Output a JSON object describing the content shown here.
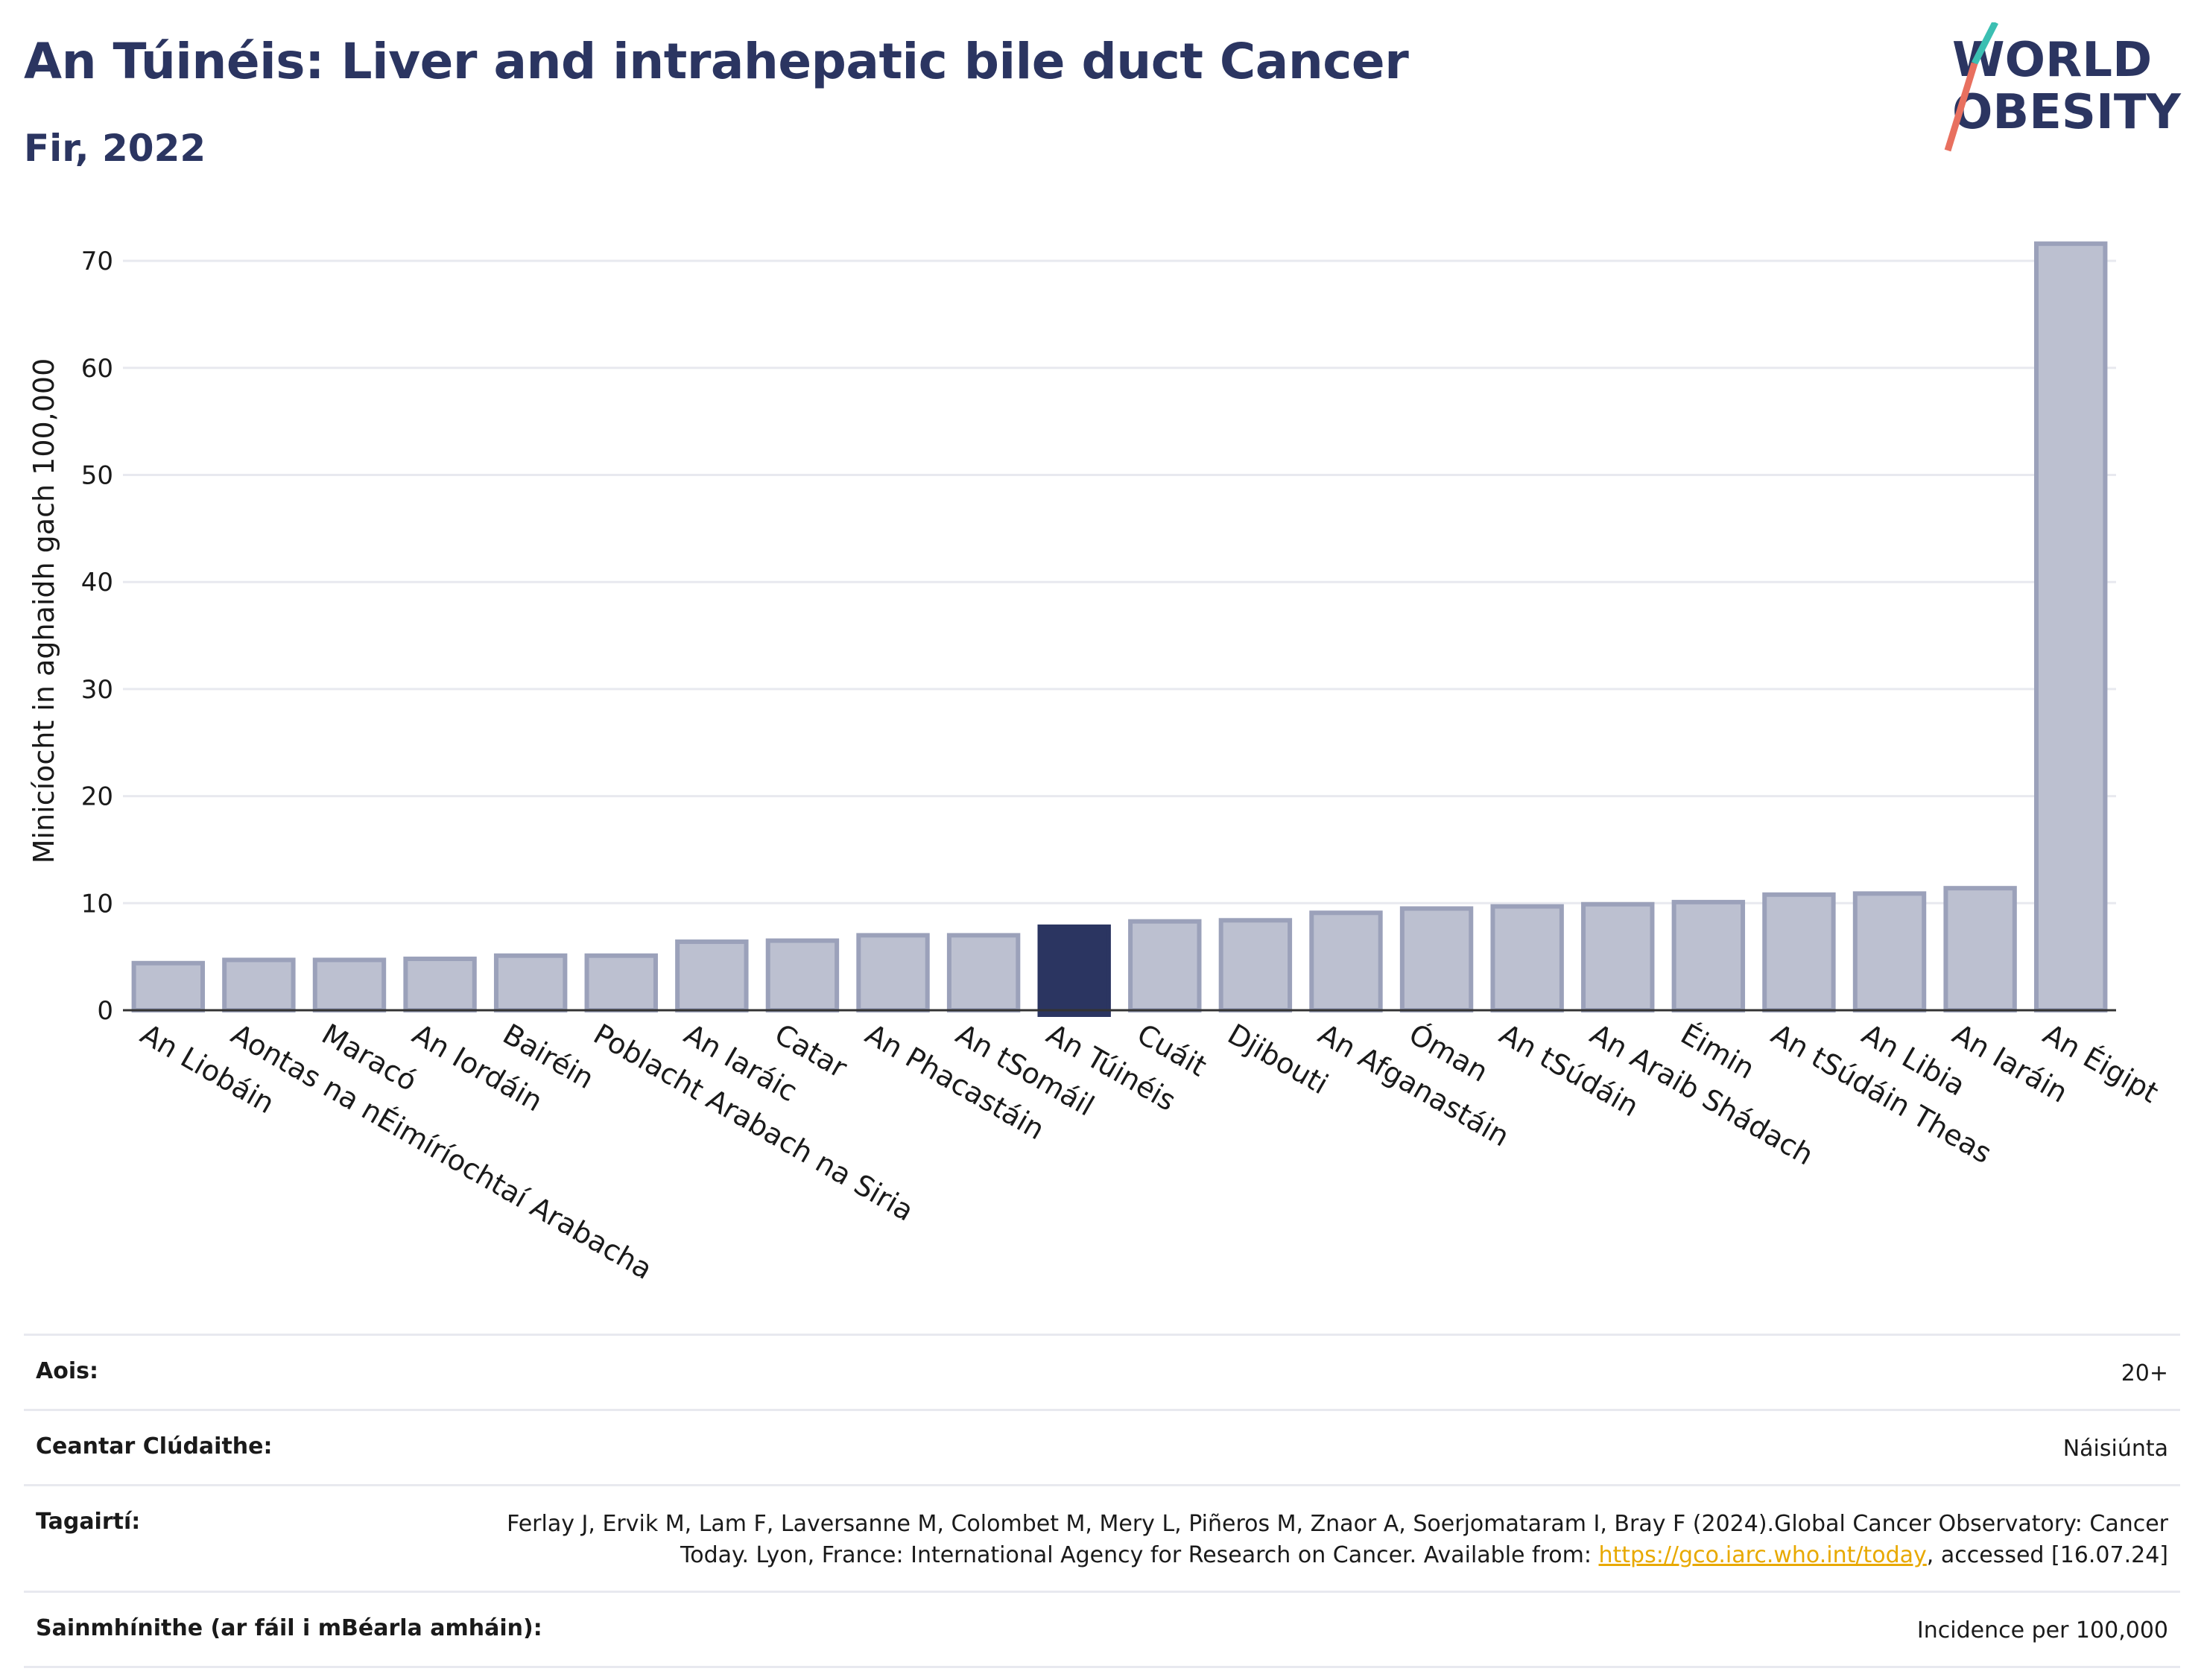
{
  "header": {
    "title": "An Túinéis: Liver and intrahepatic bile duct Cancer",
    "subtitle": "Fir, 2022"
  },
  "logo": {
    "line1": "WORLD",
    "line2": "OBESITY"
  },
  "chart_data": {
    "type": "bar",
    "ylabel": "Minicíocht in aghaidh gach 100,000",
    "xlabel": "",
    "ylim": [
      0,
      75
    ],
    "yticks": [
      0,
      10,
      20,
      30,
      40,
      50,
      60,
      70
    ],
    "grid": true,
    "highlight": "An Túinéis",
    "categories": [
      "An Liobáin",
      "Aontas na nÉimíríochtaí Arabacha",
      "Maracó",
      "An Iordáin",
      "Bairéin",
      "Poblacht Arabach na Siria",
      "An Iaráic",
      "Catar",
      "An Phacastáin",
      "An tSomáil",
      "An Túinéis",
      "Cuáit",
      "Djibouti",
      "An Afganastáin",
      "Óman",
      "An tSúdáin",
      "An Araib Shádach",
      "Éimin",
      "An tSúdáin Theas",
      "An Libia",
      "An Iaráin",
      "An Éigipt"
    ],
    "values": [
      4.4,
      4.7,
      4.7,
      4.8,
      5.1,
      5.1,
      6.4,
      6.5,
      7.0,
      7.0,
      7.8,
      8.3,
      8.4,
      9.1,
      9.5,
      9.7,
      9.9,
      10.1,
      10.8,
      10.9,
      11.4,
      71.6
    ],
    "colors": {
      "bar": "#bcc0d0",
      "bar_border": "#9ba1ba",
      "highlight": "#2b3561"
    }
  },
  "metadata": [
    {
      "label": "Aois:",
      "value": "20+"
    },
    {
      "label": "Ceantar Clúdaithe:",
      "value": "Náisiúnta"
    },
    {
      "label": "Tagairtí:",
      "value_before": "Ferlay J, Ervik M, Lam F, Laversanne M, Colombet M, Mery L, Piñeros M, Znaor A, Soerjomataram I, Bray F (2024).Global Cancer Observatory: Cancer Today. Lyon, France: International Agency for Research on Cancer. Available from: ",
      "link": "https://gco.iarc.who.int/today",
      "value_after": ", accessed [16.07.24]"
    },
    {
      "label": "Sainmhínithe (ar fáil i mBéarla amháin):",
      "value": "Incidence per 100,000"
    }
  ]
}
